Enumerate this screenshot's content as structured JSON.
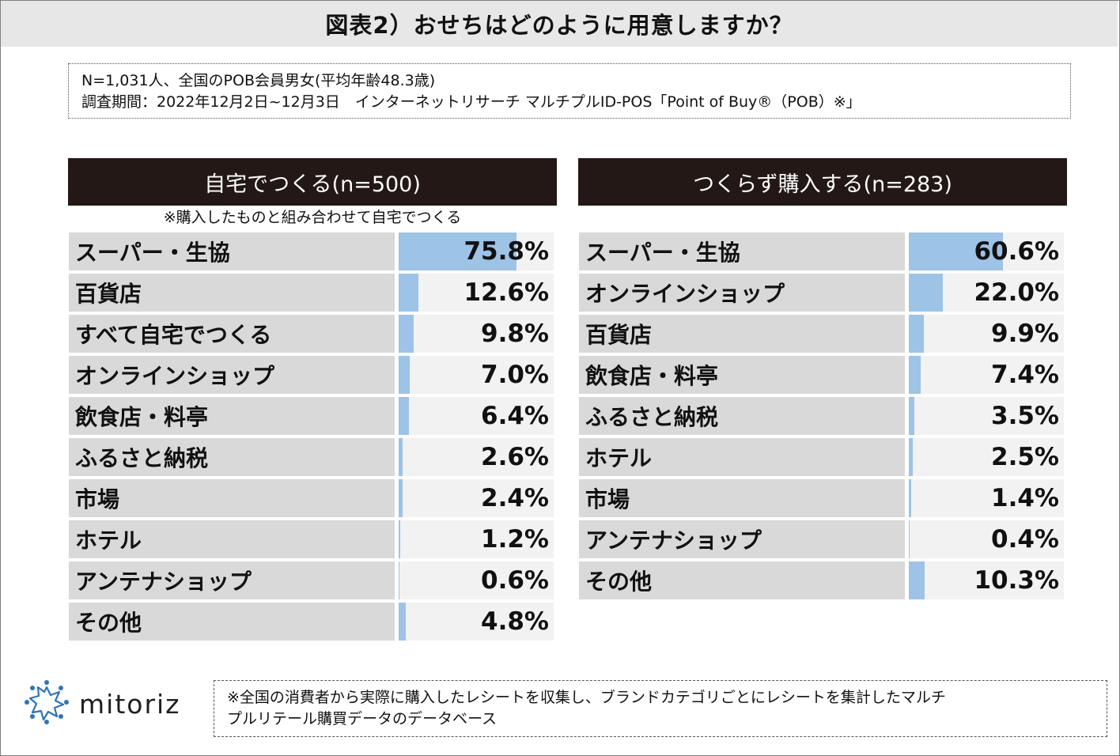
{
  "header": {
    "title": "図表2）おせちはどのように用意しますか？"
  },
  "survey": {
    "line1": "N=1,031人、全国のPOB会員男女(平均年齢48.3歳)",
    "line2": "調査期間：2022年12月2日~12月3日　インターネットリサーチ マルチプルID-POS「Point of Buy®（POB）※」"
  },
  "chart_data": [
    {
      "type": "bar",
      "title": "自宅でつくる(n=500)",
      "subtitle": "※購入したものと組み合わせて自宅でつくる",
      "categories": [
        "スーパー・生協",
        "百貨店",
        "すべて自宅でつくる",
        "オンラインショップ",
        "飲食店・料亭",
        "ふるさと納税",
        "市場",
        "ホテル",
        "アンテナショップ",
        "その他"
      ],
      "values": [
        75.8,
        12.6,
        9.8,
        7.0,
        6.4,
        2.6,
        2.4,
        1.2,
        0.6,
        4.8
      ],
      "labels": [
        "75.8%",
        "12.6%",
        "9.8%",
        "7.0%",
        "6.4%",
        "2.6%",
        "2.4%",
        "1.2%",
        "0.6%",
        "4.8%"
      ],
      "xlim": [
        0,
        100
      ],
      "bar_color": "#9dc3e6"
    },
    {
      "type": "bar",
      "title": "つくらず購入する(n=283)",
      "subtitle": "",
      "categories": [
        "スーパー・生協",
        "オンラインショップ",
        "百貨店",
        "飲食店・料亭",
        "ふるさと納税",
        "ホテル",
        "市場",
        "アンテナショップ",
        "その他"
      ],
      "values": [
        60.6,
        22.0,
        9.9,
        7.4,
        3.5,
        2.5,
        1.4,
        0.4,
        10.3
      ],
      "labels": [
        "60.6%",
        "22.0%",
        "9.9%",
        "7.4%",
        "3.5%",
        "2.5%",
        "1.4%",
        "0.4%",
        "10.3%"
      ],
      "xlim": [
        0,
        100
      ],
      "bar_color": "#9dc3e6"
    }
  ],
  "footer": {
    "logo_text": "mitoriz",
    "logo_icon": "starburst-logo-icon",
    "note": "※全国の消費者から実際に購入したレシートを収集し、ブランドカテゴリごとにレシートを集計したマルチ",
    "note2": "プルリテール購買データのデータベース"
  }
}
